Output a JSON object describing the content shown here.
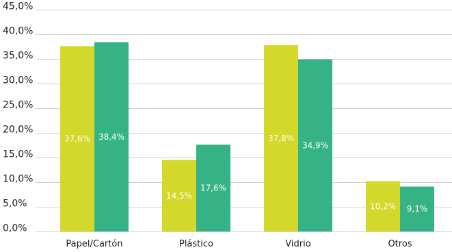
{
  "chart_data": {
    "type": "bar",
    "categories": [
      "Papel/Cartón",
      "Plástico",
      "Vidrio",
      "Otros"
    ],
    "series": [
      {
        "values": [
          37.6,
          14.5,
          37.8,
          10.2
        ],
        "labels": [
          "37,6%",
          "14,5%",
          "37,8%",
          "10,2%"
        ],
        "color": "#d4d82a"
      },
      {
        "values": [
          38.4,
          17.6,
          34.9,
          9.1
        ],
        "labels": [
          "38,4%",
          "17,6%",
          "34,9%",
          "9,1%"
        ],
        "color": "#35b386"
      }
    ],
    "y_ticks": [
      0,
      5,
      10,
      15,
      20,
      25,
      30,
      35,
      40,
      45
    ],
    "y_tick_labels": [
      "0,0%",
      "5,0%",
      "10,0%",
      "15,0%",
      "20,0%",
      "25,0%",
      "30,0%",
      "35,0%",
      "40,0%",
      "45,0%"
    ],
    "ylim": [
      0,
      45
    ],
    "grid": true,
    "grid_color": "#cfcfcf",
    "legend": "none"
  }
}
